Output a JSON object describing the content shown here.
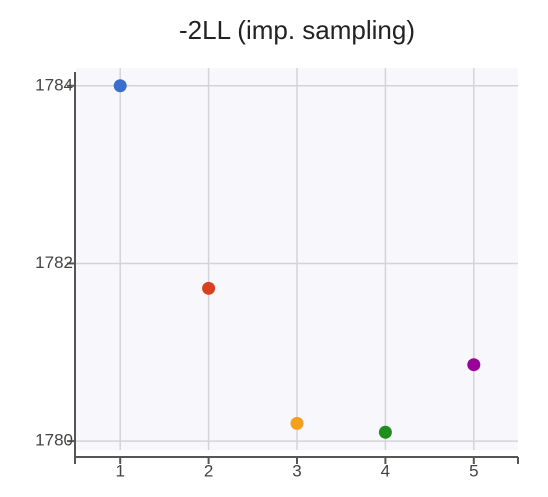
{
  "chart_data": {
    "type": "scatter",
    "title": "-2LL (imp. sampling)",
    "x": [
      1,
      2,
      3,
      4,
      5
    ],
    "values": [
      1784.0,
      1781.72,
      1780.2,
      1780.1,
      1780.86
    ],
    "colors": [
      "#3a6fd0",
      "#d9401f",
      "#f5a01a",
      "#1e8f1e",
      "#990099"
    ],
    "xlim": [
      0.5,
      5.5
    ],
    "xticks": [
      1,
      2,
      3,
      4,
      5
    ],
    "ylim": [
      1779.9,
      1784.2
    ],
    "yticks": [
      1780,
      1782,
      1784
    ],
    "grid": true
  }
}
